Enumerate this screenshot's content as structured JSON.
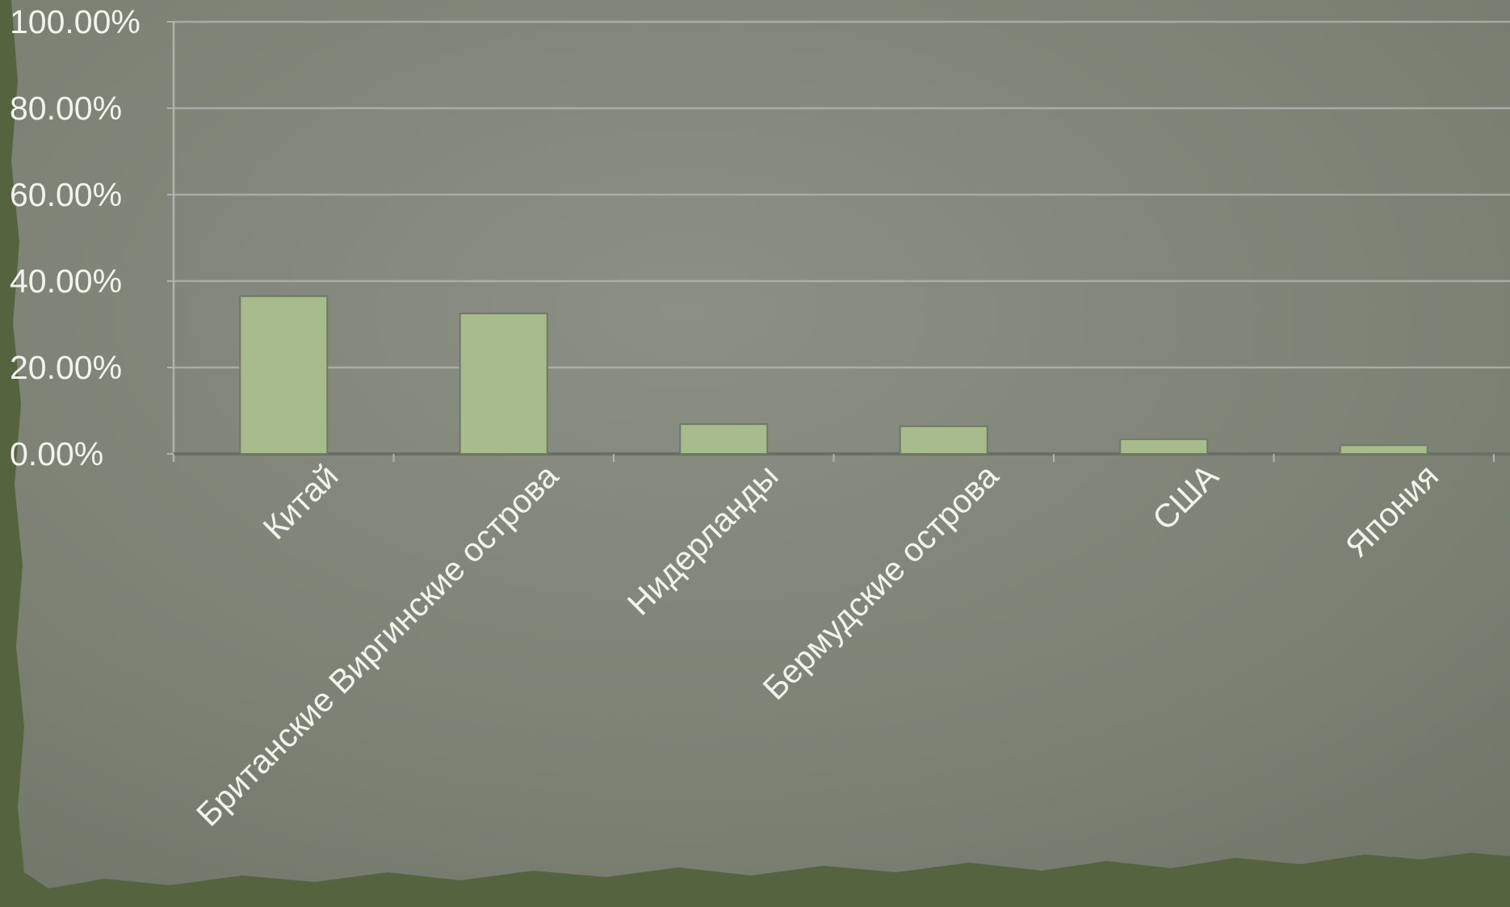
{
  "colors": {
    "background_paper": "#80857a",
    "background_edge": "#55633f",
    "bar_fill": "#a7bb8c",
    "bar_stroke": "#6f7a63",
    "gridline": "#b0b3aa",
    "text": "#f2f4ec"
  },
  "chart_data": {
    "type": "bar",
    "title": "",
    "xlabel": "",
    "ylabel": "",
    "categories": [
      "Китай",
      "Британские Виргинские острова",
      "Нидерланды",
      "Бермудские острова",
      "США",
      "Япония"
    ],
    "values": [
      36.5,
      32.5,
      6.9,
      6.4,
      3.4,
      2.0
    ],
    "y_ticks": [
      "0.00%",
      "20.00%",
      "40.00%",
      "60.00%",
      "80.00%",
      "100.00%"
    ],
    "y_tick_values": [
      0,
      20,
      40,
      60,
      80,
      100
    ],
    "ylim": [
      0,
      100
    ],
    "grid": true,
    "legend": "none"
  }
}
